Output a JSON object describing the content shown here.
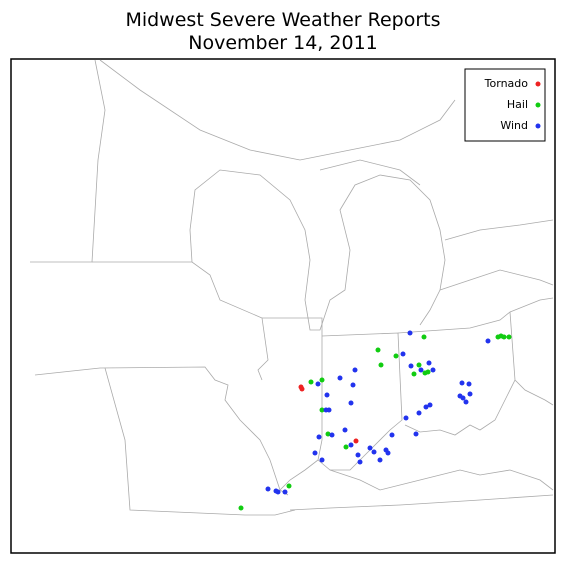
{
  "title": [
    "Midwest Severe Weather Reports",
    "November 14, 2011"
  ],
  "legend": [
    {
      "name": "Tornado",
      "color": "#ee2222"
    },
    {
      "name": "Hail",
      "color": "#11cc11"
    },
    {
      "name": "Wind",
      "color": "#2233ee"
    }
  ]
}
